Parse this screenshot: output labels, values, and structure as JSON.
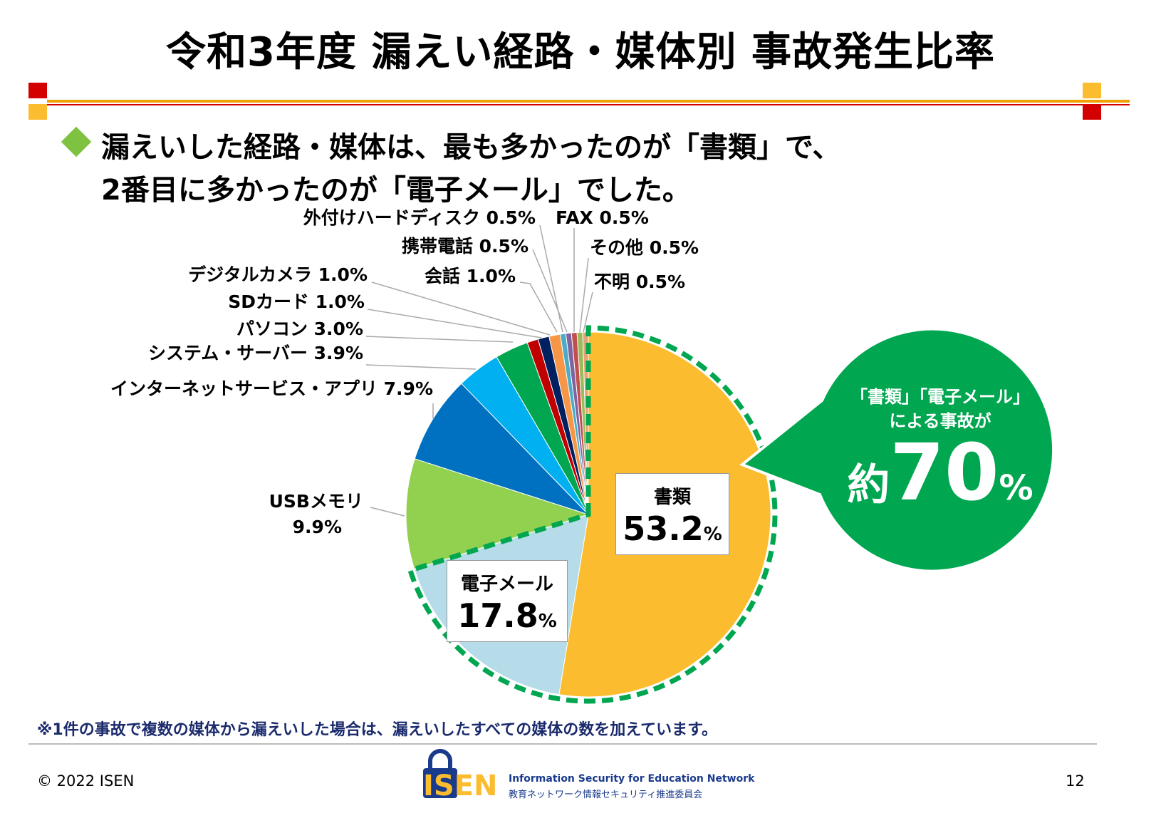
{
  "title": "令和3年度 漏えい経路・媒体別 事故発生比率",
  "headline": {
    "line1": "漏えいした経路・媒体は、最も多かったのが「書類」で、",
    "line2": "2番目に多かったのが「電子メール」でした。"
  },
  "chart_data": {
    "type": "pie",
    "start": "12 o'clock, clockwise",
    "slices": [
      {
        "label": "書類",
        "value": 53.2,
        "color": "#fbbc2f"
      },
      {
        "label": "電子メール",
        "value": 17.8,
        "color": "#b5dce8"
      },
      {
        "label": "USBメモリ",
        "value": 9.9,
        "color": "#92d050"
      },
      {
        "label": "インターネットサービス・アプリ",
        "value": 7.9,
        "color": "#0070c0"
      },
      {
        "label": "システム・サーバー",
        "value": 3.9,
        "color": "#00b0f0"
      },
      {
        "label": "パソコン",
        "value": 3.0,
        "color": "#00a650"
      },
      {
        "label": "SDカード",
        "value": 1.0,
        "color": "#c00000"
      },
      {
        "label": "デジタルカメラ",
        "value": 1.0,
        "color": "#002060"
      },
      {
        "label": "会話",
        "value": 1.0,
        "color": "#f79646"
      },
      {
        "label": "携帯電話",
        "value": 0.5,
        "color": "#4bacc6"
      },
      {
        "label": "外付けハードディスク",
        "value": 0.5,
        "color": "#8064a2"
      },
      {
        "label": "FAX",
        "value": 0.5,
        "color": "#c0504d"
      },
      {
        "label": "その他",
        "value": 0.5,
        "color": "#9bbb59"
      },
      {
        "label": "不明",
        "value": 0.5,
        "color": "#e6a07a"
      }
    ],
    "labels": [
      "外付けハードディスク 0.5%",
      "FAX 0.5%",
      "携帯電話 0.5%",
      "その他 0.5%",
      "デジタルカメラ 1.0%",
      "会話 1.0%",
      "不明 0.5%",
      "SDカード 1.0%",
      "パソコン 3.0%",
      "システム・サーバー 3.9%",
      "インターネットサービス・アプリ 7.9%",
      "USBメモリ",
      "9.9%"
    ],
    "highlight_boxes": [
      {
        "label": "書類",
        "value": "53.2",
        "unit": "%"
      },
      {
        "label": "電子メール",
        "value": "17.8",
        "unit": "%"
      }
    ],
    "callout": {
      "line1": "「書類」「電子メール」",
      "line2": "による事故が",
      "prefix": "約",
      "value": "70",
      "unit": "%",
      "color": "#00a650"
    }
  },
  "footnote": "※1件の事故で複数の媒体から漏えいした場合は、漏えいしたすべての媒体の数を加えています。",
  "copyright": "© 2022 ISEN",
  "page_number": "12",
  "logo": {
    "mark": "ISEN",
    "sub1": "Information Security for Education Network",
    "sub2": "教育ネットワーク情報セキュリティ推進委員会"
  },
  "colors": {
    "accent_orange": "#f0a000",
    "accent_red": "#d40000",
    "bullet_green": "#7fc241",
    "navy": "#1a3a8c"
  }
}
